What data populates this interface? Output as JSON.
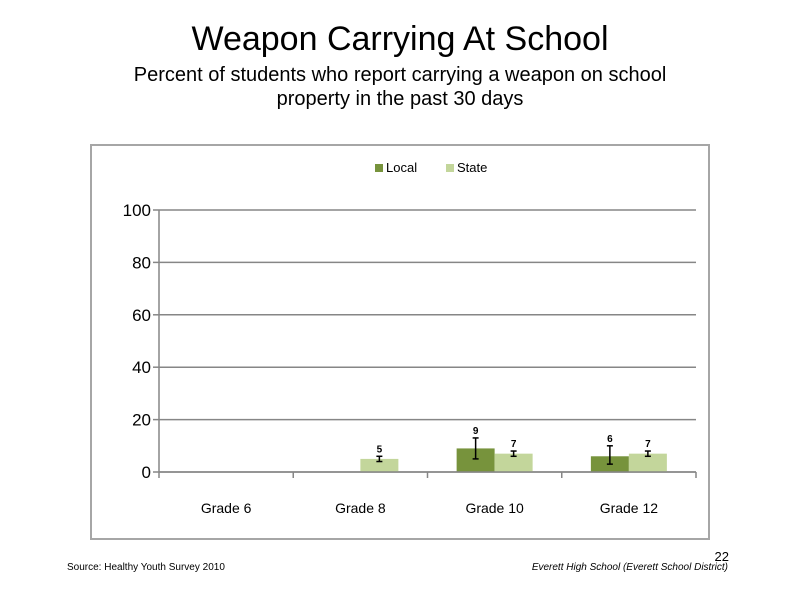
{
  "slide": {
    "title": "Weapon Carrying At School",
    "subtitle": "Percent of students who report carrying a weapon on school property in the past 30 days",
    "source": "Source: Healthy Youth Survey 2010",
    "school": "Everett High School (Everett School District)",
    "page_number": "22"
  },
  "chart_data": {
    "type": "bar",
    "categories": [
      "Grade 6",
      "Grade 8",
      "Grade 10",
      "Grade 12"
    ],
    "series": [
      {
        "name": "Local",
        "color": "#77933c",
        "values": [
          null,
          null,
          9,
          6
        ],
        "error_low": [
          null,
          null,
          5,
          3
        ],
        "error_high": [
          null,
          null,
          13,
          10
        ]
      },
      {
        "name": "State",
        "color": "#c3d69b",
        "values": [
          null,
          5,
          7,
          7
        ],
        "error_low": [
          null,
          4,
          6,
          6
        ],
        "error_high": [
          null,
          6,
          8,
          8
        ]
      }
    ],
    "data_labels": [
      [
        null,
        null,
        "9",
        "6"
      ],
      [
        null,
        "5",
        "7",
        "7"
      ]
    ],
    "yticks": [
      0,
      20,
      40,
      60,
      80,
      100
    ],
    "ylim": [
      0,
      100
    ],
    "grid": true,
    "legend_position": "top"
  }
}
